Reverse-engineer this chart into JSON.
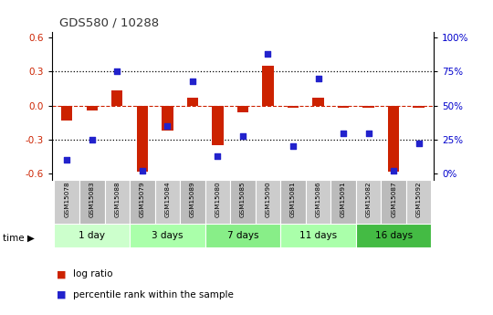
{
  "title": "GDS580 / 10288",
  "samples": [
    "GSM15078",
    "GSM15083",
    "GSM15088",
    "GSM15079",
    "GSM15084",
    "GSM15089",
    "GSM15080",
    "GSM15085",
    "GSM15090",
    "GSM15081",
    "GSM15086",
    "GSM15091",
    "GSM15082",
    "GSM15087",
    "GSM15092"
  ],
  "log_ratio": [
    -0.13,
    -0.04,
    0.13,
    -0.58,
    -0.22,
    0.07,
    -0.35,
    -0.06,
    0.35,
    -0.02,
    0.07,
    -0.02,
    -0.02,
    -0.58,
    -0.02
  ],
  "percentile_rank": [
    10,
    25,
    75,
    2,
    35,
    68,
    13,
    28,
    88,
    20,
    70,
    30,
    30,
    2,
    22
  ],
  "groups": [
    {
      "label": "1 day",
      "indices": [
        0,
        1,
        2
      ],
      "color": "#ccffcc"
    },
    {
      "label": "3 days",
      "indices": [
        3,
        4,
        5
      ],
      "color": "#aaffaa"
    },
    {
      "label": "7 days",
      "indices": [
        6,
        7,
        8
      ],
      "color": "#88ee88"
    },
    {
      "label": "11 days",
      "indices": [
        9,
        10,
        11
      ],
      "color": "#aaffaa"
    },
    {
      "label": "16 days",
      "indices": [
        12,
        13,
        14
      ],
      "color": "#44bb44"
    }
  ],
  "ylim": [
    -0.65,
    0.65
  ],
  "yticks_left": [
    -0.6,
    -0.3,
    0.0,
    0.3,
    0.6
  ],
  "yticks_right": [
    0,
    25,
    50,
    75,
    100
  ],
  "bar_color": "#cc2200",
  "dot_color": "#2222cc",
  "hline_color": "#cc2200",
  "dotted_color": "#000000",
  "title_color": "#333333",
  "tick_label_color_left": "#cc2200",
  "tick_label_color_right": "#0000cc",
  "sample_bg_color": "#cccccc",
  "sample_bg_color_alt": "#bbbbbb",
  "figwidth": 5.4,
  "figheight": 3.45,
  "dpi": 100
}
